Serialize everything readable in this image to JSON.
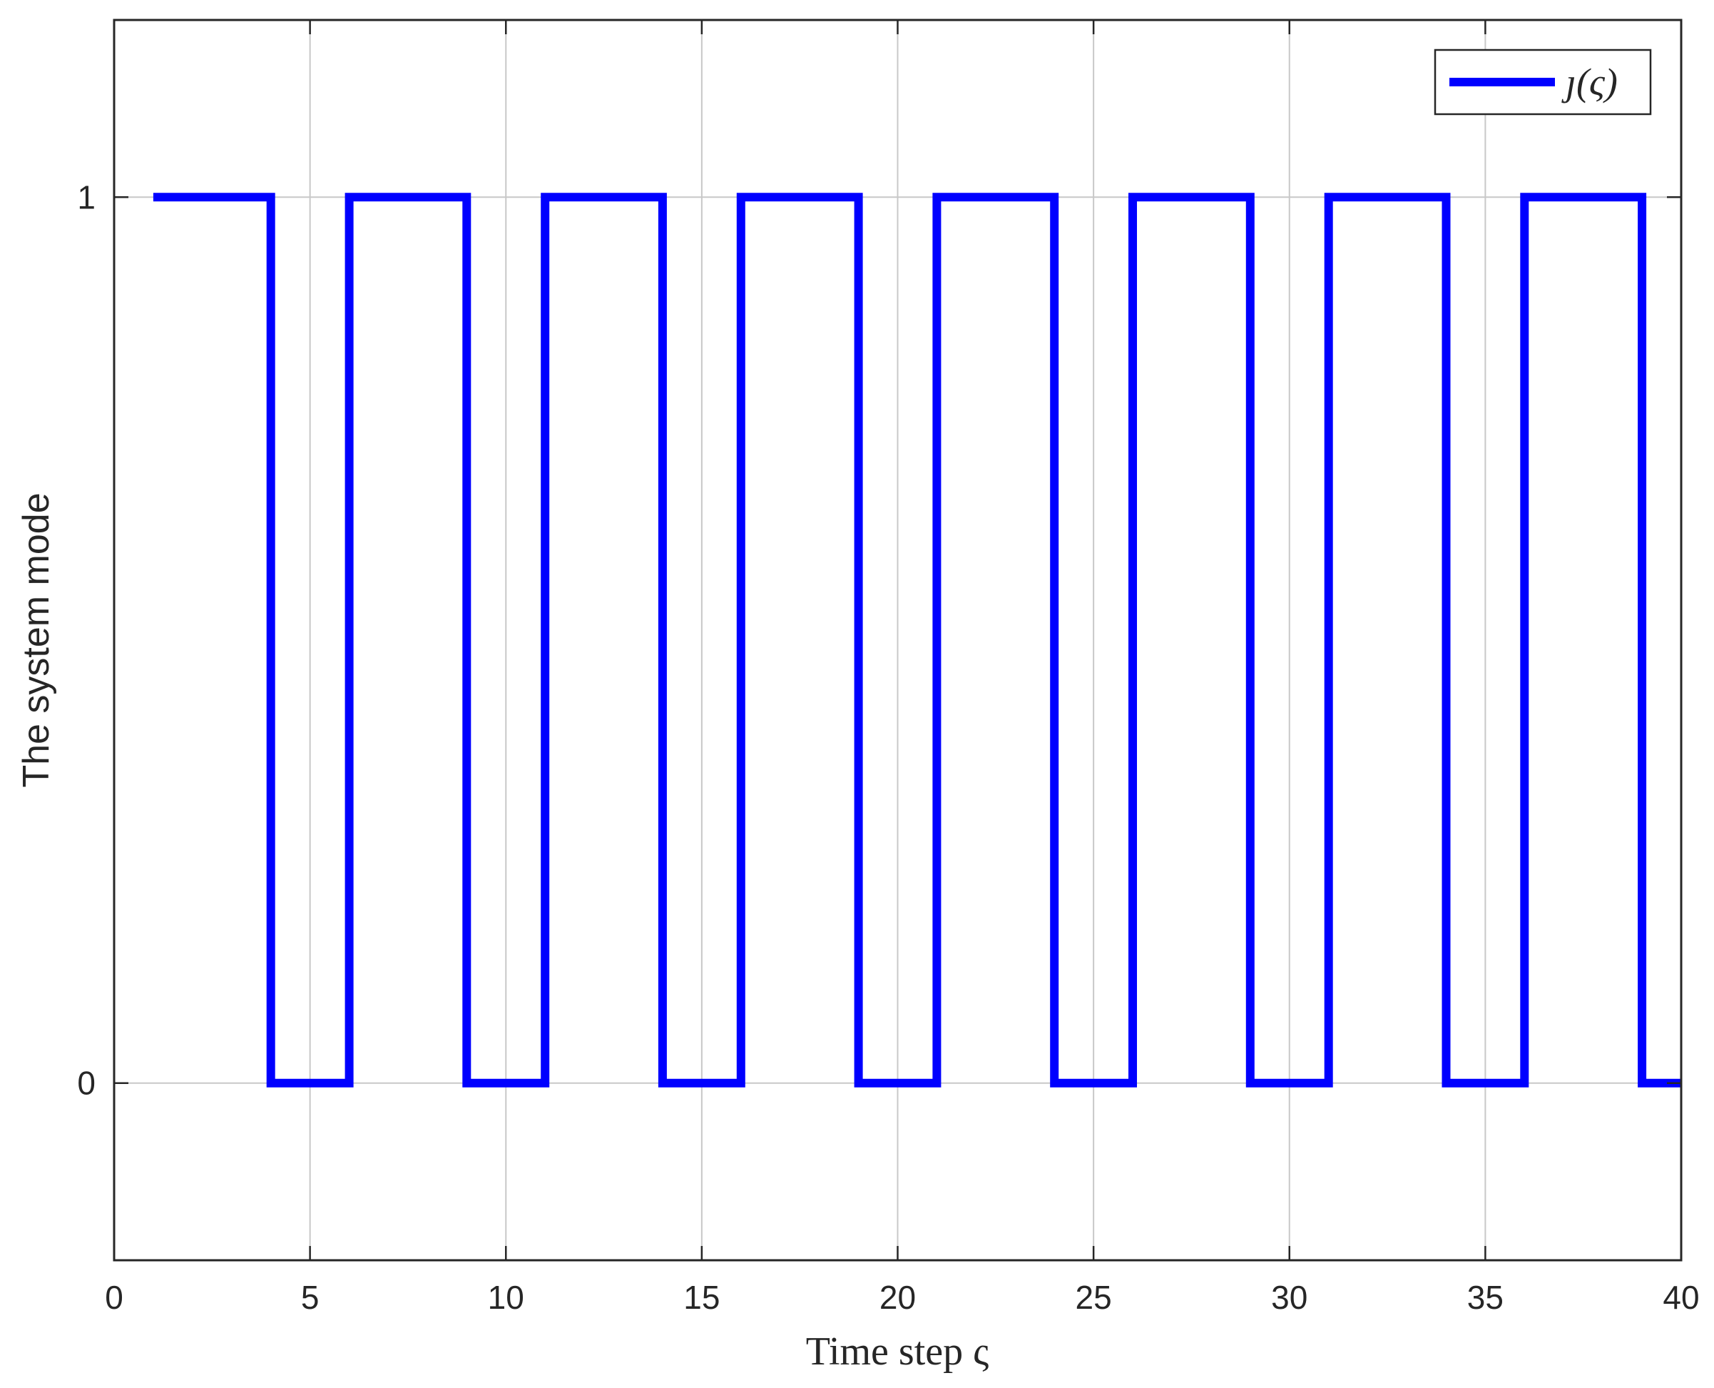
{
  "chart_data": {
    "type": "line",
    "step": true,
    "title": "",
    "xlabel": "Time step ς",
    "ylabel": "The system mode",
    "xlim": [
      0,
      40
    ],
    "ylim": [
      -0.2,
      1.2
    ],
    "xticks": [
      0,
      5,
      10,
      15,
      20,
      25,
      30,
      35,
      40
    ],
    "xtick_labels": [
      "0",
      "5",
      "10",
      "15",
      "20",
      "25",
      "30",
      "35",
      "40"
    ],
    "yticks": [
      0,
      1
    ],
    "ytick_labels": [
      "0",
      "1"
    ],
    "grid": true,
    "legend_position": "top-right",
    "series": [
      {
        "name": "ȷ(ς)",
        "color": "#0000ff",
        "x": [
          1,
          4,
          4,
          6,
          6,
          9,
          9,
          11,
          11,
          14,
          14,
          16,
          16,
          19,
          19,
          21,
          21,
          24,
          24,
          26,
          26,
          29,
          29,
          31,
          31,
          34,
          34,
          36,
          36,
          39,
          39,
          40
        ],
        "y": [
          1,
          1,
          0,
          0,
          1,
          1,
          0,
          0,
          1,
          1,
          0,
          0,
          1,
          1,
          0,
          0,
          1,
          1,
          0,
          0,
          1,
          1,
          0,
          0,
          1,
          1,
          0,
          0,
          1,
          1,
          0,
          0
        ]
      }
    ]
  }
}
